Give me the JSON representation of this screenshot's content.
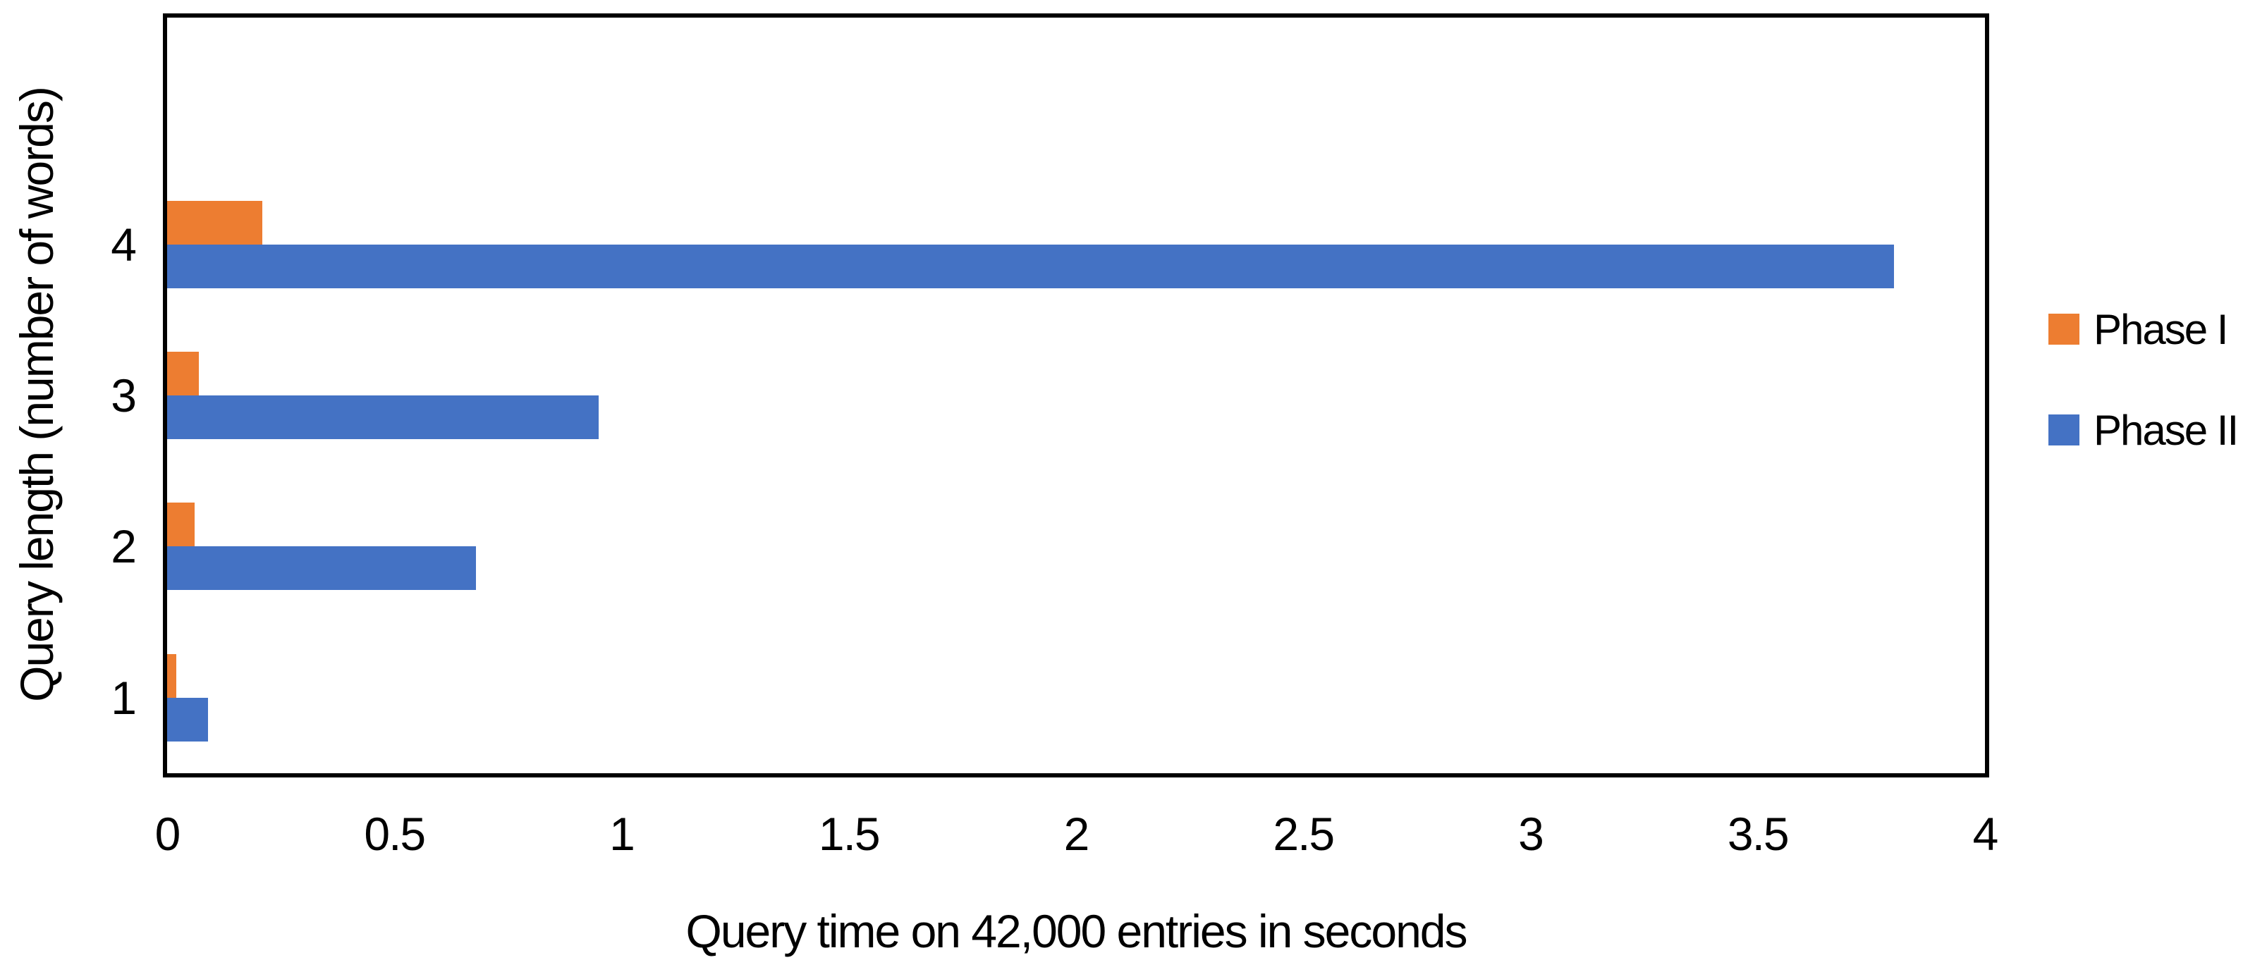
{
  "chart_data": {
    "type": "bar",
    "orientation": "horizontal",
    "title": "",
    "xlabel": "Query time on 42,000 entries in seconds",
    "ylabel": "Query length (number of words)",
    "categories": [
      "4",
      "3",
      "2",
      "1"
    ],
    "series": [
      {
        "name": "Phase I",
        "color": "#ED7D31",
        "values": [
          0.21,
          0.07,
          0.06,
          0.02
        ]
      },
      {
        "name": "Phase II",
        "color": "#4472C4",
        "values": [
          3.8,
          0.95,
          0.68,
          0.09
        ]
      }
    ],
    "x_axis": {
      "min": 0,
      "max": 4,
      "tick_step": 0.5,
      "tick_labels": [
        "0",
        "0.5",
        "1",
        "1.5",
        "2",
        "2.5",
        "3",
        "3.5",
        "4"
      ]
    },
    "y_axis": {
      "tick_labels": [
        "4",
        "3",
        "2",
        "1"
      ]
    },
    "legend": {
      "position": "right",
      "entries": [
        "Phase I",
        "Phase II"
      ]
    },
    "grid": false,
    "plot_border_color": "#000000",
    "background_color": "#FFFFFF"
  }
}
